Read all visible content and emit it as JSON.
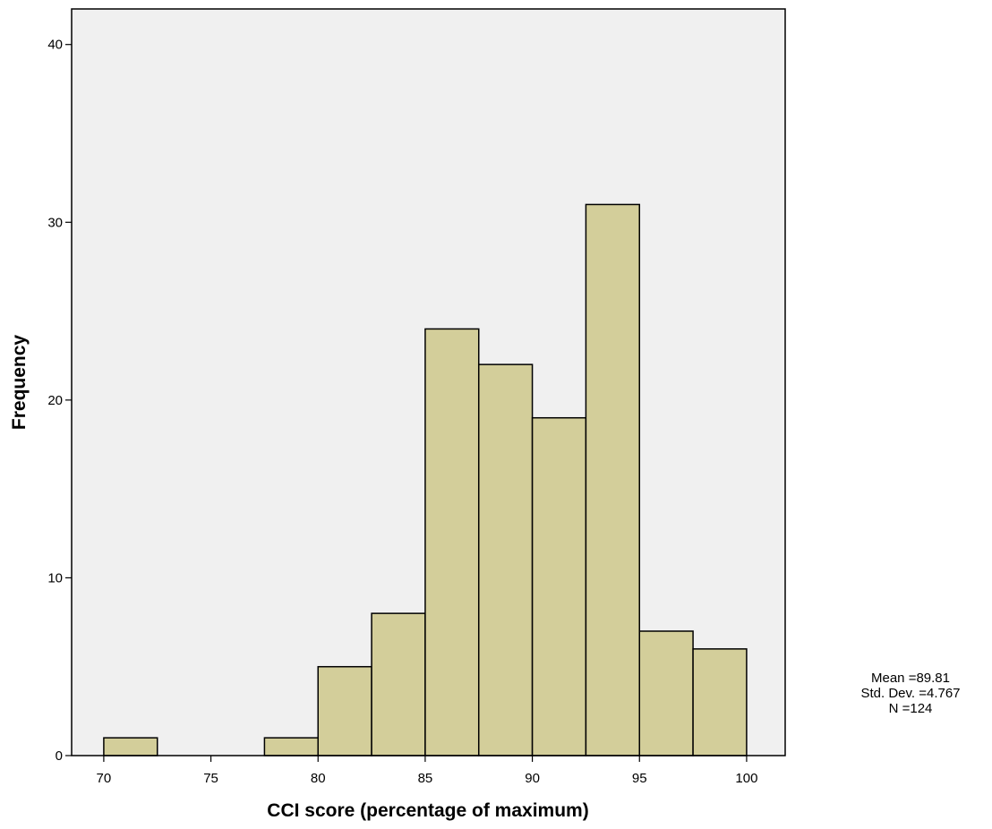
{
  "chart_data": {
    "type": "bar",
    "subtype": "histogram",
    "xlabel": "CCI score (percentage of maximum)",
    "ylabel": "Frequency",
    "xlim": [
      68.5,
      101.8
    ],
    "ylim": [
      0,
      42
    ],
    "x_ticks": [
      70,
      75,
      80,
      85,
      90,
      95,
      100
    ],
    "y_ticks": [
      0,
      10,
      20,
      30,
      40
    ],
    "bin_width": 2.5,
    "bins": [
      {
        "start": 70.0,
        "end": 72.5,
        "count": 1
      },
      {
        "start": 72.5,
        "end": 75.0,
        "count": 0
      },
      {
        "start": 75.0,
        "end": 77.5,
        "count": 0
      },
      {
        "start": 77.5,
        "end": 80.0,
        "count": 1
      },
      {
        "start": 80.0,
        "end": 82.5,
        "count": 5
      },
      {
        "start": 82.5,
        "end": 85.0,
        "count": 8
      },
      {
        "start": 85.0,
        "end": 87.5,
        "count": 24
      },
      {
        "start": 87.5,
        "end": 90.0,
        "count": 22
      },
      {
        "start": 90.0,
        "end": 92.5,
        "count": 19
      },
      {
        "start": 92.5,
        "end": 95.0,
        "count": 31
      },
      {
        "start": 95.0,
        "end": 97.5,
        "count": 7
      },
      {
        "start": 97.5,
        "end": 100.0,
        "count": 6
      }
    ],
    "stats": {
      "mean": "Mean =89.81",
      "std_dev": "Std. Dev. =4.767",
      "n": "N =124"
    },
    "grid": false,
    "colors": {
      "plot_background": "#f0f0f0",
      "bar_fill": "#d3ce9a",
      "bar_stroke": "#000000",
      "frame": "#000000"
    }
  }
}
